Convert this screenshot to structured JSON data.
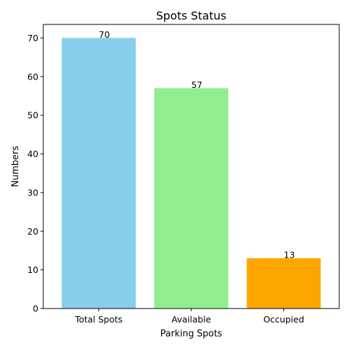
{
  "chart_data": {
    "type": "bar",
    "title": "Spots Status",
    "xlabel": "Parking Spots",
    "ylabel": "Numbers",
    "categories": [
      "Total Spots",
      "Available",
      "Occupied"
    ],
    "values": [
      70,
      57,
      13
    ],
    "data_labels": [
      "70",
      "57",
      "13"
    ],
    "colors": [
      "#87ceeb",
      "#90ee90",
      "#ffa500"
    ],
    "ylim": [
      0,
      73.5
    ],
    "yticks": [
      0,
      10,
      20,
      30,
      40,
      50,
      60,
      70
    ],
    "grid": false,
    "legend": "none"
  }
}
